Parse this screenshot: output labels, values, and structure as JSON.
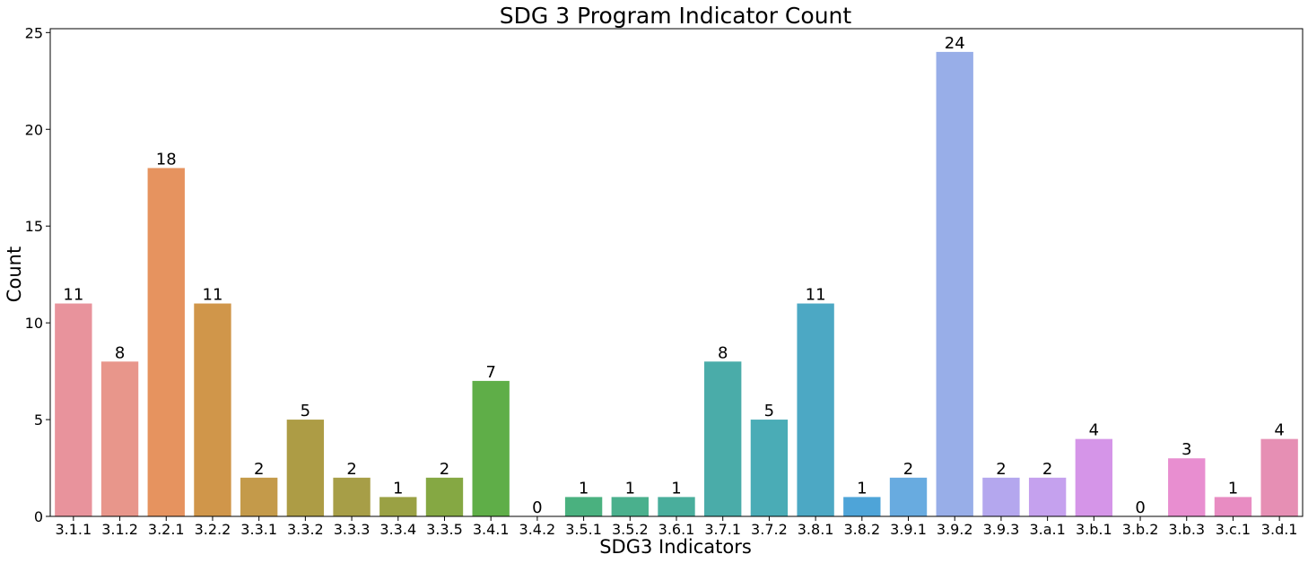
{
  "chart_data": {
    "type": "bar",
    "title": "SDG 3 Program Indicator Count",
    "xlabel": "SDG3 Indicators",
    "ylabel": "Count",
    "ylim": [
      0,
      25.2
    ],
    "yticks": [
      0,
      5,
      10,
      15,
      20,
      25
    ],
    "grid": false,
    "legend": "none",
    "categories": [
      "3.1.1",
      "3.1.2",
      "3.2.1",
      "3.2.2",
      "3.3.1",
      "3.3.2",
      "3.3.3",
      "3.3.4",
      "3.3.5",
      "3.4.1",
      "3.4.2",
      "3.5.1",
      "3.5.2",
      "3.6.1",
      "3.7.1",
      "3.7.2",
      "3.8.1",
      "3.8.2",
      "3.9.1",
      "3.9.2",
      "3.9.3",
      "3.a.1",
      "3.b.1",
      "3.b.2",
      "3.b.3",
      "3.c.1",
      "3.d.1"
    ],
    "values": [
      11,
      8,
      18,
      11,
      2,
      5,
      2,
      1,
      2,
      7,
      0,
      1,
      1,
      1,
      8,
      5,
      11,
      1,
      2,
      24,
      2,
      2,
      4,
      0,
      3,
      1,
      4
    ],
    "colors": [
      "#e8939c",
      "#e8968b",
      "#e6935f",
      "#d0964a",
      "#c49a4a",
      "#ad9c45",
      "#a79e47",
      "#9aa144",
      "#85a843",
      "#5fae48",
      "#4bb066",
      "#4ab17f",
      "#4ab08d",
      "#49ae9c",
      "#4aaca9",
      "#4aacb6",
      "#4ca8c4",
      "#4ea4d8",
      "#68abe0",
      "#98aee8",
      "#b4a7ee",
      "#c5a1ee",
      "#d595e8",
      "#e28fd9",
      "#e88ed0",
      "#e88cc2",
      "#e68fb4"
    ]
  }
}
